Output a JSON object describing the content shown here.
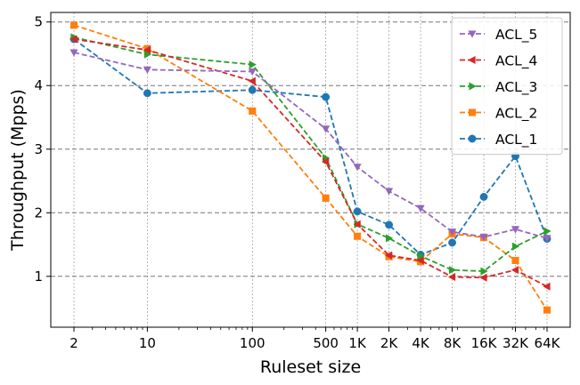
{
  "chart_data": {
    "type": "line",
    "xlabel": "Ruleset size",
    "ylabel": "Throughput (Mpps)",
    "x_scale": "log2",
    "x": [
      2,
      10,
      100,
      500,
      1000,
      2000,
      4000,
      8000,
      16000,
      32000,
      64000
    ],
    "x_tick_labels": [
      "2",
      "10",
      "100",
      "500",
      "1K",
      "2K",
      "4K",
      "8K",
      "16K",
      "32K",
      "64K"
    ],
    "y_ticks": [
      1,
      2,
      3,
      4,
      5
    ],
    "ylim": [
      0.2,
      5.15
    ],
    "grid": true,
    "legend_position": "top-right",
    "series": [
      {
        "name": "ACL_5",
        "color": "#9467bd",
        "marker": "triangle-down",
        "values": [
          4.52,
          4.25,
          4.22,
          3.32,
          2.72,
          2.34,
          2.07,
          1.7,
          1.62,
          1.74,
          1.6
        ]
      },
      {
        "name": "ACL_4",
        "color": "#d62728",
        "marker": "triangle-left",
        "values": [
          4.73,
          4.56,
          4.07,
          2.8,
          1.82,
          1.33,
          1.25,
          0.99,
          0.98,
          1.1,
          0.84
        ]
      },
      {
        "name": "ACL_3",
        "color": "#2ca02c",
        "marker": "triangle-right",
        "values": [
          4.76,
          4.49,
          4.33,
          2.86,
          1.82,
          1.6,
          1.32,
          1.1,
          1.08,
          1.47,
          1.71
        ]
      },
      {
        "name": "ACL_2",
        "color": "#ff7f0e",
        "marker": "square",
        "values": [
          4.95,
          4.58,
          3.6,
          2.23,
          1.63,
          1.31,
          1.23,
          1.67,
          1.61,
          1.25,
          0.47
        ]
      },
      {
        "name": "ACL_1",
        "color": "#1f77b4",
        "marker": "circle",
        "values": [
          4.73,
          3.88,
          3.93,
          3.82,
          2.02,
          1.81,
          1.34,
          1.53,
          2.25,
          2.89,
          1.59
        ]
      }
    ]
  }
}
